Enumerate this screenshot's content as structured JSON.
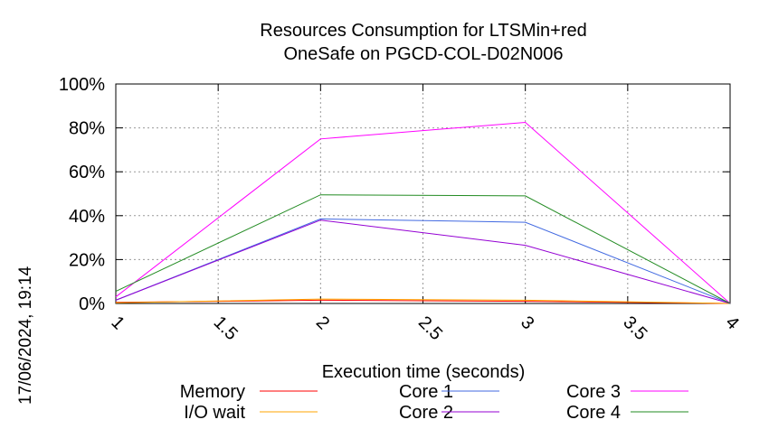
{
  "chart_data": {
    "type": "line",
    "title": [
      "Resources Consumption for LTSMin+red",
      "OneSafe on PGCD-COL-D02N006"
    ],
    "xlabel": "Execution time (seconds)",
    "ylabel": "",
    "timestamp": "17/06/2024, 19:14",
    "xlim": [
      1,
      4
    ],
    "ylim": [
      0,
      100
    ],
    "x_ticks": [
      "1",
      "1.5",
      "2",
      "2.5",
      "3",
      "3.5",
      "4"
    ],
    "y_ticks": [
      "0%",
      "20%",
      "40%",
      "60%",
      "80%",
      "100%"
    ],
    "grid": true,
    "legend_position": "bottom",
    "x": [
      1,
      2,
      3,
      4
    ],
    "series": [
      {
        "name": "Memory",
        "color": "#ff0000",
        "values": [
          0.5,
          1.5,
          1.0,
          0
        ]
      },
      {
        "name": "I/O wait",
        "color": "#ffa500",
        "values": [
          0.3,
          2.0,
          1.5,
          0
        ]
      },
      {
        "name": "Core 1",
        "color": "#4169e1",
        "values": [
          1.5,
          38.5,
          37,
          0
        ]
      },
      {
        "name": "Core 2",
        "color": "#9400d3",
        "values": [
          1.5,
          38,
          26.5,
          0
        ]
      },
      {
        "name": "Core 3",
        "color": "#ff00ff",
        "values": [
          3,
          75,
          82.5,
          0
        ]
      },
      {
        "name": "Core 4",
        "color": "#228b22",
        "values": [
          5.5,
          49.5,
          49,
          0
        ]
      }
    ]
  }
}
